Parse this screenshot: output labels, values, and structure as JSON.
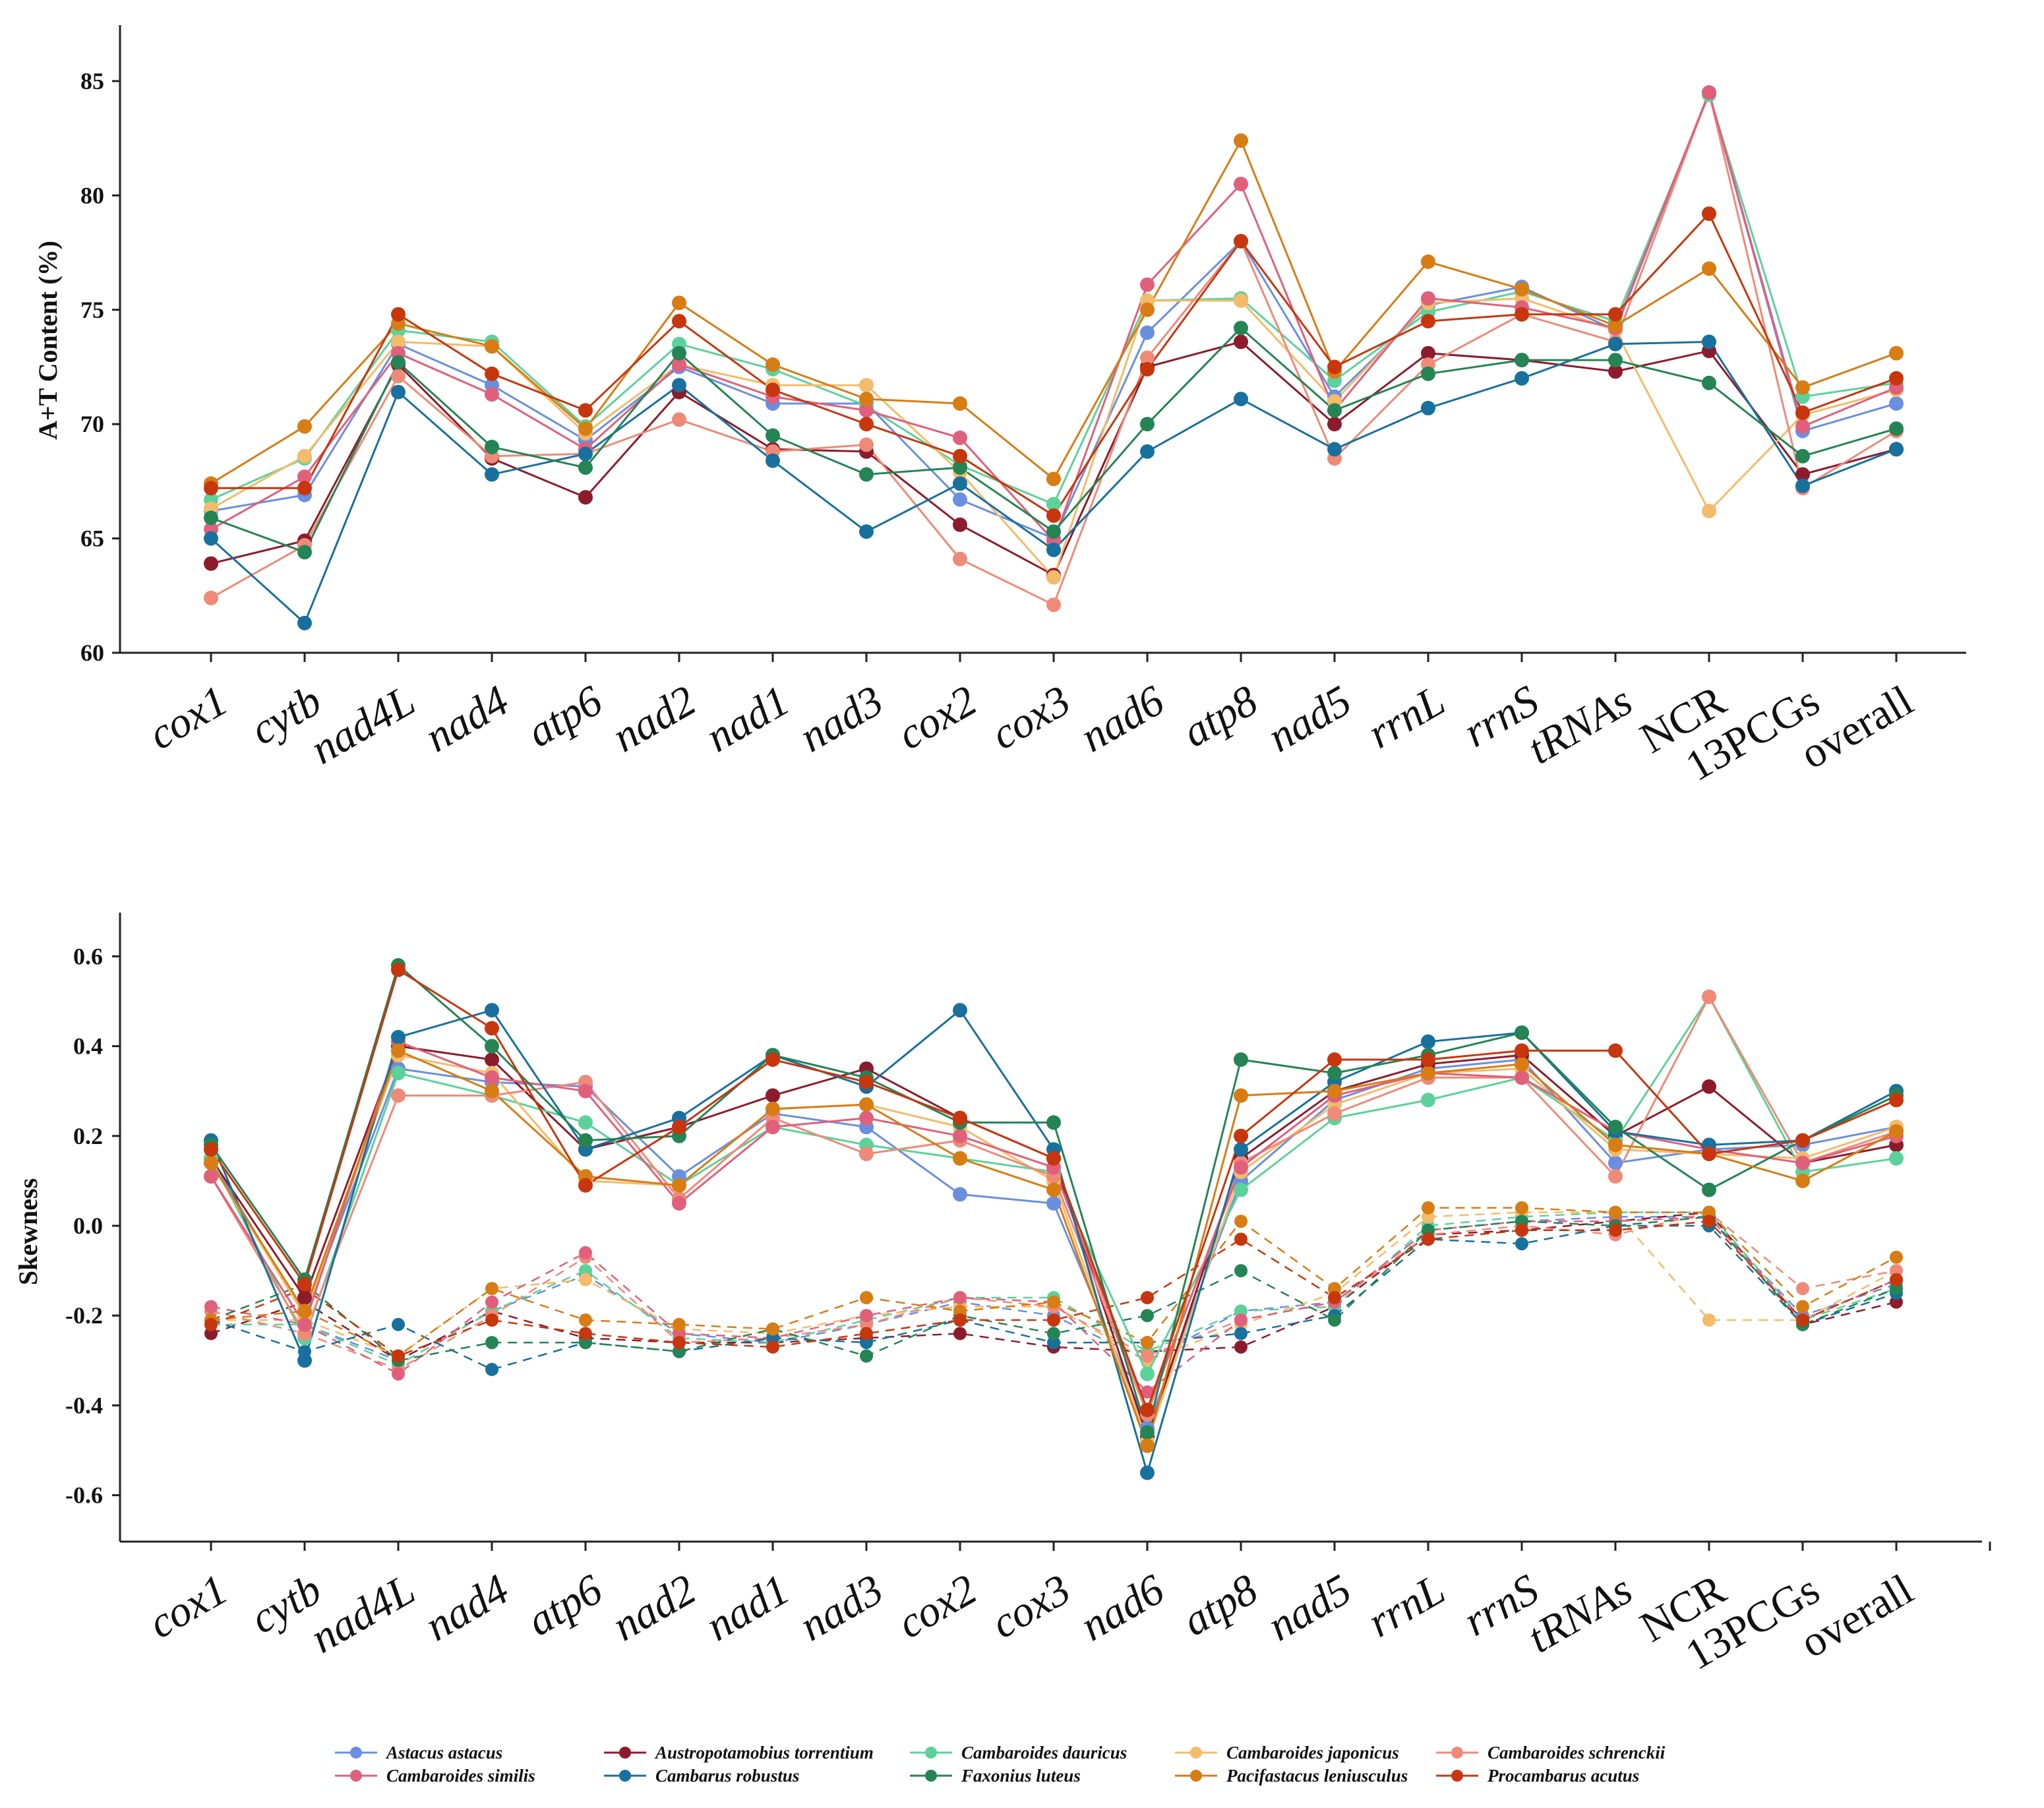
{
  "colors": {
    "Astacus astacus": "#6a8fe0",
    "Austropotamobius torrentium": "#8c1c2c",
    "Cambaroides dauricus": "#5cd29a",
    "Cambaroides japonicus": "#f4bb6a",
    "Cambaroides schrenckii": "#ef8a78",
    "Cambaroides similis": "#e0607c",
    "Cambarus robustus": "#18709e",
    "Faxonius luteus": "#248454",
    "Pacifastacus leniusculus": "#d87c14",
    "Procambarus acutus": "#c8360e"
  },
  "legend": [
    "Astacus astacus",
    "Austropotamobius torrentium",
    "Cambaroides dauricus",
    "Cambaroides japonicus",
    "Cambaroides schrenckii",
    "Cambaroides similis",
    "Cambarus robustus",
    "Faxonius luteus",
    "Pacifastacus leniusculus",
    "Procambarus acutus"
  ],
  "chart_data": [
    {
      "type": "line",
      "title": "",
      "xlabel": "",
      "ylabel": "A+T Content (%)",
      "ylim": [
        60,
        87
      ],
      "yticks": [
        "60",
        "65",
        "70",
        "75",
        "80",
        "85"
      ],
      "categories": [
        "cox1",
        "cytb",
        "nad4L",
        "nad4",
        "atp6",
        "nad2",
        "nad1",
        "nad3",
        "cox2",
        "cox3",
        "nad6",
        "atp8",
        "nad5",
        "rrnL",
        "rrnS",
        "tRNAs",
        "NCR",
        "13PCGs",
        "overall"
      ],
      "italic_categories": [
        "cox1",
        "cytb",
        "nad4L",
        "nad4",
        "atp6",
        "nad2",
        "nad1",
        "nad3",
        "cox2",
        "cox3",
        "nad6",
        "atp8",
        "nad5",
        "rrnL",
        "rrnS",
        "tRNAs"
      ],
      "series": [
        {
          "name": "Astacus astacus",
          "values": [
            66.2,
            66.9,
            73.5,
            71.7,
            69.3,
            72.5,
            70.9,
            70.9,
            66.7,
            65.0,
            74.0,
            78.0,
            71.2,
            75.2,
            76.0,
            74.1,
            84.5,
            69.7,
            70.9
          ]
        },
        {
          "name": "Austropotamobius torrentium",
          "values": [
            63.9,
            64.9,
            72.6,
            68.5,
            66.8,
            71.4,
            68.9,
            68.8,
            65.6,
            63.4,
            72.5,
            73.6,
            70.0,
            73.1,
            72.8,
            72.3,
            73.2,
            67.8,
            68.9
          ]
        },
        {
          "name": "Cambaroides dauricus",
          "values": [
            66.7,
            68.5,
            74.1,
            73.6,
            69.9,
            73.5,
            72.4,
            70.8,
            68.2,
            66.5,
            75.4,
            75.5,
            71.9,
            74.9,
            75.8,
            74.5,
            84.4,
            71.2,
            71.8
          ]
        },
        {
          "name": "Cambaroides japonicus",
          "values": [
            66.3,
            68.6,
            73.6,
            73.4,
            69.6,
            72.6,
            71.7,
            71.7,
            67.9,
            63.3,
            75.4,
            75.4,
            71.0,
            75.3,
            75.5,
            74.1,
            66.2,
            70.4,
            71.5
          ]
        },
        {
          "name": "Cambaroides schrenckii",
          "values": [
            62.4,
            64.7,
            72.1,
            68.6,
            68.7,
            70.2,
            68.8,
            69.1,
            64.1,
            62.1,
            72.9,
            78.0,
            68.5,
            72.6,
            74.8,
            73.6,
            84.5,
            67.2,
            69.7
          ]
        },
        {
          "name": "Cambaroides similis",
          "values": [
            65.4,
            67.7,
            73.1,
            71.3,
            68.9,
            72.6,
            71.2,
            70.6,
            69.4,
            64.9,
            76.1,
            80.5,
            70.6,
            75.5,
            75.1,
            74.2,
            84.5,
            69.9,
            71.6
          ]
        },
        {
          "name": "Cambarus robustus",
          "values": [
            65.0,
            61.3,
            71.4,
            67.8,
            68.7,
            71.7,
            68.4,
            65.3,
            67.4,
            64.5,
            68.8,
            71.1,
            68.9,
            70.7,
            72.0,
            73.5,
            73.6,
            67.3,
            68.9
          ]
        },
        {
          "name": "Faxonius luteus",
          "values": [
            65.9,
            64.4,
            72.7,
            69.0,
            68.1,
            73.1,
            69.5,
            67.8,
            68.1,
            65.3,
            70.0,
            74.2,
            70.6,
            72.2,
            72.8,
            72.8,
            71.8,
            68.6,
            69.8
          ]
        },
        {
          "name": "Pacifastacus leniusculus",
          "values": [
            67.4,
            69.9,
            74.4,
            73.4,
            69.8,
            75.3,
            72.6,
            71.1,
            70.9,
            67.6,
            75.0,
            82.4,
            72.3,
            77.1,
            75.9,
            74.3,
            76.8,
            71.6,
            73.1
          ]
        },
        {
          "name": "Procambarus acutus",
          "values": [
            67.2,
            67.2,
            74.8,
            72.2,
            70.6,
            74.5,
            71.5,
            70.0,
            68.6,
            66.0,
            72.4,
            78.0,
            72.5,
            74.5,
            74.8,
            74.8,
            79.2,
            70.5,
            72.0
          ]
        }
      ]
    },
    {
      "type": "line",
      "title": "",
      "xlabel": "",
      "ylabel": "Skewness",
      "ylim": [
        -0.7,
        0.7
      ],
      "yticks": [
        "-0.6",
        "-0.4",
        "-0.2",
        "0.0",
        "0.2",
        "0.4",
        "0.6"
      ],
      "categories": [
        "cox1",
        "cytb",
        "nad4L",
        "nad4",
        "atp6",
        "nad2",
        "nad1",
        "nad3",
        "cox2",
        "cox3",
        "nad6",
        "atp8",
        "nad5",
        "rrnL",
        "rrnS",
        "tRNAs",
        "NCR",
        "13PCGs",
        "overall"
      ],
      "italic_categories": [
        "cox1",
        "cytb",
        "nad4L",
        "nad4",
        "atp6",
        "nad2",
        "nad1",
        "nad3",
        "cox2",
        "cox3",
        "nad6",
        "atp8",
        "nad5",
        "rrnL",
        "rrnS",
        "tRNAs"
      ],
      "series_style": {
        "solid": "skew_a",
        "dashed": "skew_b"
      },
      "series": [
        {
          "name": "Astacus astacus",
          "skew_a": [
            0.15,
            -0.2,
            0.35,
            0.32,
            0.31,
            0.11,
            0.25,
            0.22,
            0.07,
            0.05,
            -0.45,
            0.1,
            0.28,
            0.35,
            0.37,
            0.14,
            0.17,
            0.18,
            0.22
          ],
          "skew_b": [
            -0.22,
            -0.22,
            -0.3,
            -0.19,
            -0.11,
            -0.24,
            -0.26,
            -0.22,
            -0.17,
            -0.2,
            -0.3,
            -0.19,
            -0.17,
            -0.01,
            0.01,
            0.02,
            0.02,
            -0.2,
            -0.13
          ]
        },
        {
          "name": "Austropotamobius torrentium",
          "skew_a": [
            0.15,
            -0.16,
            0.4,
            0.37,
            0.17,
            0.22,
            0.29,
            0.35,
            0.24,
            0.15,
            -0.47,
            0.15,
            0.3,
            0.36,
            0.38,
            0.2,
            0.31,
            0.14,
            0.18
          ],
          "skew_b": [
            -0.24,
            -0.17,
            -0.3,
            -0.19,
            -0.25,
            -0.26,
            -0.26,
            -0.25,
            -0.24,
            -0.27,
            -0.28,
            -0.27,
            -0.18,
            -0.02,
            -0.01,
            0.01,
            0.03,
            -0.22,
            -0.17
          ]
        },
        {
          "name": "Cambaroides dauricus",
          "skew_a": [
            0.15,
            -0.25,
            0.34,
            0.29,
            0.23,
            0.09,
            0.22,
            0.18,
            0.15,
            0.12,
            -0.33,
            0.08,
            0.24,
            0.28,
            0.33,
            0.19,
            0.51,
            0.12,
            0.15
          ],
          "skew_b": [
            -0.22,
            -0.22,
            -0.31,
            -0.19,
            -0.1,
            -0.25,
            -0.26,
            -0.21,
            -0.16,
            -0.16,
            -0.28,
            -0.19,
            -0.18,
            0.0,
            0.02,
            0.03,
            0.03,
            -0.21,
            -0.14
          ]
        },
        {
          "name": "Cambaroides japonicus",
          "skew_a": [
            0.14,
            -0.2,
            0.38,
            0.34,
            0.1,
            0.09,
            0.26,
            0.27,
            0.22,
            0.1,
            -0.48,
            0.12,
            0.27,
            0.34,
            0.35,
            0.17,
            0.16,
            0.15,
            0.22
          ],
          "skew_b": [
            -0.21,
            -0.21,
            -0.29,
            -0.14,
            -0.12,
            -0.23,
            -0.24,
            -0.2,
            -0.18,
            -0.18,
            -0.3,
            -0.22,
            -0.15,
            0.02,
            0.03,
            0.03,
            -0.21,
            -0.21,
            -0.1
          ]
        },
        {
          "name": "Cambaroides schrenckii",
          "skew_a": [
            0.11,
            -0.24,
            0.29,
            0.29,
            0.32,
            0.06,
            0.24,
            0.16,
            0.19,
            0.11,
            -0.42,
            0.14,
            0.25,
            0.33,
            0.33,
            0.11,
            0.51,
            0.14,
            0.21
          ],
          "skew_b": [
            -0.19,
            -0.24,
            -0.32,
            -0.2,
            -0.07,
            -0.26,
            -0.25,
            -0.22,
            -0.16,
            -0.18,
            -0.29,
            -0.21,
            -0.17,
            -0.02,
            0.0,
            -0.02,
            0.03,
            -0.14,
            -0.1
          ]
        },
        {
          "name": "Cambaroides similis",
          "skew_a": [
            0.11,
            -0.22,
            0.41,
            0.33,
            0.3,
            0.05,
            0.22,
            0.24,
            0.2,
            0.13,
            -0.41,
            0.13,
            0.29,
            0.34,
            0.33,
            0.21,
            0.17,
            0.14,
            0.2
          ],
          "skew_b": [
            -0.18,
            -0.22,
            -0.33,
            -0.17,
            -0.06,
            -0.24,
            -0.25,
            -0.2,
            -0.16,
            -0.17,
            -0.37,
            -0.21,
            -0.17,
            -0.01,
            0.01,
            0.01,
            0.02,
            -0.21,
            -0.12
          ]
        },
        {
          "name": "Cambarus robustus",
          "skew_a": [
            0.19,
            -0.3,
            0.42,
            0.48,
            0.17,
            0.24,
            0.38,
            0.31,
            0.48,
            0.17,
            -0.55,
            0.17,
            0.32,
            0.41,
            0.43,
            0.21,
            0.18,
            0.19,
            0.3
          ],
          "skew_b": [
            -0.21,
            -0.28,
            -0.22,
            -0.32,
            -0.26,
            -0.28,
            -0.25,
            -0.26,
            -0.21,
            -0.26,
            -0.26,
            -0.24,
            -0.2,
            -0.03,
            -0.04,
            0.0,
            0.0,
            -0.22,
            -0.15
          ]
        },
        {
          "name": "Faxonius luteus",
          "skew_a": [
            0.18,
            -0.12,
            0.58,
            0.4,
            0.19,
            0.2,
            0.38,
            0.33,
            0.23,
            0.23,
            -0.46,
            0.37,
            0.34,
            0.38,
            0.43,
            0.22,
            0.08,
            0.19,
            0.29
          ],
          "skew_b": [
            -0.21,
            -0.13,
            -0.3,
            -0.26,
            -0.26,
            -0.28,
            -0.23,
            -0.29,
            -0.2,
            -0.24,
            -0.2,
            -0.1,
            -0.21,
            -0.01,
            0.01,
            0.0,
            0.02,
            -0.22,
            -0.14
          ]
        },
        {
          "name": "Pacifastacus leniusculus",
          "skew_a": [
            0.14,
            -0.19,
            0.39,
            0.3,
            0.11,
            0.09,
            0.26,
            0.27,
            0.15,
            0.08,
            -0.49,
            0.29,
            0.3,
            0.34,
            0.36,
            0.18,
            0.16,
            0.1,
            0.21
          ],
          "skew_b": [
            -0.21,
            -0.19,
            -0.29,
            -0.14,
            -0.21,
            -0.22,
            -0.23,
            -0.16,
            -0.19,
            -0.17,
            -0.26,
            0.01,
            -0.14,
            0.04,
            0.04,
            0.03,
            0.03,
            -0.18,
            -0.07
          ]
        },
        {
          "name": "Procambarus acutus",
          "skew_a": [
            0.17,
            -0.13,
            0.57,
            0.44,
            0.09,
            0.22,
            0.37,
            0.32,
            0.24,
            0.15,
            -0.41,
            0.2,
            0.37,
            0.37,
            0.39,
            0.39,
            0.16,
            0.19,
            0.28
          ],
          "skew_b": [
            -0.22,
            -0.14,
            -0.29,
            -0.21,
            -0.24,
            -0.26,
            -0.27,
            -0.24,
            -0.21,
            -0.21,
            -0.16,
            -0.03,
            -0.16,
            -0.03,
            -0.01,
            -0.01,
            0.01,
            -0.21,
            -0.12
          ]
        }
      ]
    }
  ]
}
